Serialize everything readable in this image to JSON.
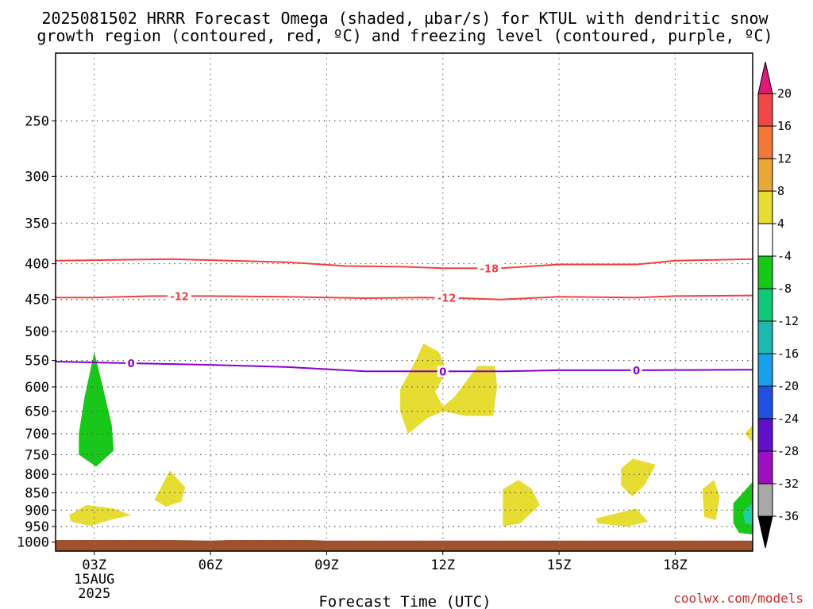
{
  "chart_data": {
    "type": "area",
    "title_line1": "2025081502 HRRR Forecast Omega (shaded, µbar/s) for KTUL with dendritic snow",
    "title_line2": "growth region (contoured, red, ºC) and freezing level (contoured, purple, ºC)",
    "xlabel": "Forecast Time (UTC)",
    "credit": "coolwx.com/models",
    "x_range_hours": [
      2,
      20
    ],
    "x_ticks": [
      {
        "hour": 3,
        "label": "03Z"
      },
      {
        "hour": 6,
        "label": "06Z"
      },
      {
        "hour": 9,
        "label": "09Z"
      },
      {
        "hour": 12,
        "label": "12Z"
      },
      {
        "hour": 15,
        "label": "15Z"
      },
      {
        "hour": 18,
        "label": "18Z"
      }
    ],
    "x_date_label": [
      "15AUG",
      "2025"
    ],
    "y_scale": "log-pressure (hPa, inverted)",
    "y_range_hpa": [
      200,
      1030
    ],
    "y_ticks": [
      250,
      300,
      350,
      400,
      450,
      500,
      550,
      600,
      650,
      700,
      750,
      800,
      850,
      900,
      950,
      1000
    ],
    "grid": true,
    "ground_color": "#a0522d",
    "ground_hpa": [
      [
        2,
        993
      ],
      [
        5,
        993
      ],
      [
        6,
        995
      ],
      [
        6.5,
        993
      ],
      [
        8.5,
        993
      ],
      [
        9,
        995
      ],
      [
        20,
        995
      ]
    ],
    "contours": [
      {
        "value": -18,
        "label": "-18",
        "color": "#f04040",
        "label_hours": [
          13.2
        ],
        "points": [
          [
            2,
            396
          ],
          [
            5,
            394
          ],
          [
            8,
            398
          ],
          [
            9.5,
            403
          ],
          [
            11,
            404
          ],
          [
            12,
            406
          ],
          [
            13.5,
            406
          ],
          [
            15,
            401
          ],
          [
            17,
            401
          ],
          [
            18,
            396
          ],
          [
            20,
            394
          ]
        ]
      },
      {
        "value": -12,
        "label": "-12",
        "color": "#f04040",
        "label_hours": [
          5.2,
          12.1
        ],
        "points": [
          [
            2,
            447
          ],
          [
            3,
            447
          ],
          [
            4.5,
            445
          ],
          [
            6,
            445
          ],
          [
            8,
            446
          ],
          [
            10,
            448
          ],
          [
            11.5,
            447
          ],
          [
            12.5,
            448
          ],
          [
            13.5,
            450
          ],
          [
            15,
            446
          ],
          [
            17,
            447
          ],
          [
            18,
            445
          ],
          [
            20,
            444
          ]
        ]
      },
      {
        "value": 0,
        "label": "0",
        "color": "#8800cc",
        "label_hours": [
          3.95,
          12.0,
          17.0
        ],
        "points": [
          [
            2,
            552
          ],
          [
            4,
            555
          ],
          [
            6,
            558
          ],
          [
            8,
            562
          ],
          [
            10,
            570
          ],
          [
            12,
            570
          ],
          [
            13.5,
            570
          ],
          [
            15,
            568
          ],
          [
            17,
            568
          ],
          [
            20,
            567
          ]
        ]
      }
    ],
    "omega_regions": [
      {
        "color": "#e6dc32",
        "points": [
          [
            10.9,
            605
          ],
          [
            11.3,
            550
          ],
          [
            11.5,
            520
          ],
          [
            11.9,
            535
          ],
          [
            12.1,
            570
          ],
          [
            11.8,
            610
          ],
          [
            12.0,
            640
          ],
          [
            12.3,
            620
          ],
          [
            12.9,
            560
          ],
          [
            13.35,
            560
          ],
          [
            13.4,
            600
          ],
          [
            13.3,
            660
          ],
          [
            12.6,
            660
          ],
          [
            12.0,
            650
          ],
          [
            11.6,
            665
          ],
          [
            11.1,
            700
          ],
          [
            10.9,
            650
          ]
        ]
      },
      {
        "color": "#e6dc32",
        "points": [
          [
            2.35,
            915
          ],
          [
            2.8,
            885
          ],
          [
            3.5,
            895
          ],
          [
            3.95,
            915
          ],
          [
            3.4,
            930
          ],
          [
            2.9,
            948
          ],
          [
            2.4,
            935
          ]
        ]
      },
      {
        "color": "#e6dc32",
        "points": [
          [
            4.65,
            850
          ],
          [
            4.95,
            790
          ],
          [
            5.35,
            835
          ],
          [
            5.25,
            875
          ],
          [
            4.85,
            890
          ],
          [
            4.55,
            870
          ]
        ]
      },
      {
        "color": "#e6dc32",
        "points": [
          [
            13.55,
            840
          ],
          [
            13.95,
            815
          ],
          [
            14.3,
            840
          ],
          [
            14.5,
            885
          ],
          [
            14.0,
            940
          ],
          [
            13.55,
            950
          ]
        ]
      },
      {
        "color": "#e6dc32",
        "points": [
          [
            16.6,
            785
          ],
          [
            16.9,
            760
          ],
          [
            17.5,
            775
          ],
          [
            17.2,
            830
          ],
          [
            16.9,
            860
          ],
          [
            16.6,
            830
          ]
        ]
      },
      {
        "color": "#e6dc32",
        "points": [
          [
            15.95,
            925
          ],
          [
            17.0,
            895
          ],
          [
            17.3,
            935
          ],
          [
            16.75,
            950
          ],
          [
            16.0,
            940
          ]
        ]
      },
      {
        "color": "#e6dc32",
        "points": [
          [
            18.7,
            840
          ],
          [
            19.0,
            815
          ],
          [
            19.15,
            860
          ],
          [
            19.05,
            930
          ],
          [
            18.75,
            920
          ]
        ]
      },
      {
        "color": "#e6dc32",
        "points": [
          [
            19.8,
            700
          ],
          [
            20.0,
            680
          ],
          [
            20.0,
            720
          ]
        ]
      },
      {
        "color": "#18c818",
        "points": [
          [
            3.0,
            535
          ],
          [
            3.25,
            610
          ],
          [
            3.45,
            680
          ],
          [
            3.5,
            740
          ],
          [
            3.05,
            780
          ],
          [
            2.6,
            750
          ],
          [
            2.6,
            700
          ],
          [
            2.75,
            620
          ]
        ]
      },
      {
        "color": "#18c818",
        "points": [
          [
            19.5,
            880
          ],
          [
            20.0,
            820
          ],
          [
            20.0,
            975
          ],
          [
            19.65,
            970
          ],
          [
            19.5,
            940
          ]
        ]
      },
      {
        "color": "#20d0a0",
        "points": [
          [
            19.75,
            905
          ],
          [
            20.0,
            880
          ],
          [
            20.0,
            945
          ],
          [
            19.8,
            940
          ]
        ]
      }
    ],
    "colorbar": {
      "label_values": [
        "20",
        "16",
        "12",
        "8",
        "4",
        "-4",
        "-8",
        "-12",
        "-16",
        "-20",
        "-24",
        "-28",
        "-32",
        "-36"
      ],
      "segments": [
        {
          "color": "#f04848"
        },
        {
          "color": "#f07838"
        },
        {
          "color": "#e8a838"
        },
        {
          "color": "#e6dc32"
        },
        {
          "color": "#ffffff"
        },
        {
          "color": "#18c818"
        },
        {
          "color": "#10c878"
        },
        {
          "color": "#20b8b0"
        },
        {
          "color": "#1aa0e8"
        },
        {
          "color": "#2050e0"
        },
        {
          "color": "#6010c8"
        },
        {
          "color": "#9c10c0"
        },
        {
          "color": "#a8a8a8"
        }
      ],
      "top_arrow_color": "#e0187a",
      "bottom_arrow_color": "#000000"
    }
  }
}
